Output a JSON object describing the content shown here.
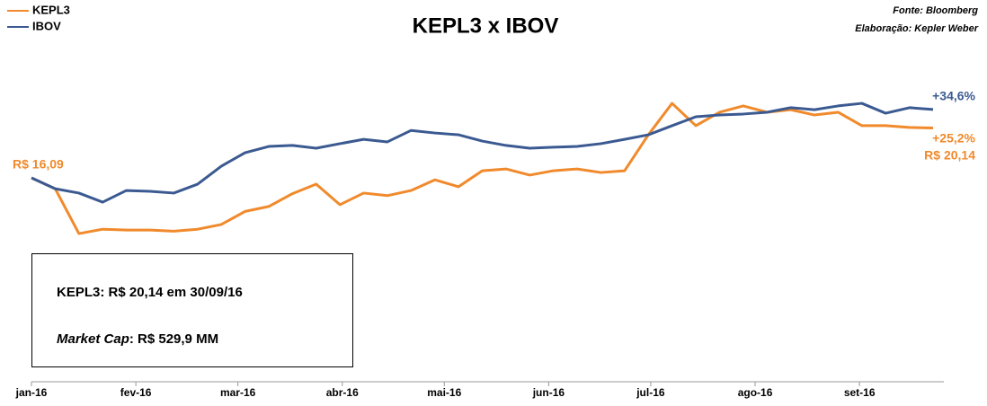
{
  "chart_data": {
    "type": "line",
    "title": "KEPL3 x IBOV",
    "source": "Fonte: Bloomberg",
    "credit": "Elaboração: Kepler Weber",
    "x": [
      0,
      1,
      2,
      3,
      4,
      5,
      6,
      7,
      8,
      9,
      10,
      11,
      12,
      13,
      14,
      15,
      16,
      17,
      18,
      19,
      20,
      21,
      22,
      23,
      24,
      25,
      26,
      27,
      28,
      29,
      30,
      31,
      32,
      33,
      34,
      35,
      36,
      37,
      38
    ],
    "series": [
      {
        "name": "KEPL3",
        "color": "#f08a2c",
        "values": [
          100,
          94.5,
          71.8,
          74,
          73.6,
          73.6,
          73,
          74,
          76.4,
          83,
          85.5,
          92,
          96.8,
          86.4,
          92.3,
          91,
          93.6,
          99,
          95.5,
          103.6,
          104.5,
          101.4,
          103.6,
          104.5,
          102.7,
          103.6,
          121.8,
          137.7,
          126.4,
          133.2,
          136.4,
          133.2,
          134.5,
          131.8,
          133.2,
          126.4,
          126.4,
          125.5,
          125.2
        ]
      },
      {
        "name": "IBOV",
        "color": "#3b5a91",
        "values": [
          100,
          94.5,
          92.3,
          87.7,
          93.6,
          93.2,
          92.3,
          96.8,
          105.9,
          112.7,
          115.9,
          116.4,
          115,
          117.3,
          119.5,
          118.2,
          124,
          122.7,
          121.8,
          118.6,
          116.4,
          115,
          115.5,
          115.9,
          117.3,
          119.5,
          121.8,
          126.4,
          130.9,
          131.8,
          132.3,
          133.2,
          135.5,
          134.5,
          136.4,
          137.7,
          132.7,
          135.5,
          134.6
        ]
      }
    ],
    "xlim": [
      0,
      38
    ],
    "xticks": [
      {
        "value": 0,
        "label": "jan-16"
      },
      {
        "value": 4.4,
        "label": "fev-16"
      },
      {
        "value": 8.7,
        "label": "mar-16"
      },
      {
        "value": 13.1,
        "label": "abr-16"
      },
      {
        "value": 17.4,
        "label": "mai-16"
      },
      {
        "value": 21.8,
        "label": "jun-16"
      },
      {
        "value": 26.1,
        "label": "jul-16"
      },
      {
        "value": 30.5,
        "label": "ago-16"
      },
      {
        "value": 34.9,
        "label": "set-16"
      }
    ],
    "ylim": [
      60,
      150
    ],
    "legend": "top-left",
    "annotations": [
      "R$ 16,09",
      "+34,6%",
      "+25,2%",
      "R$ 20,14"
    ],
    "info": {
      "line1": "KEPL3: R$ 20,14 em 30/09/16",
      "line2_italic": "Market Cap",
      "line2_rest": ": R$ 529,9 MM"
    }
  }
}
